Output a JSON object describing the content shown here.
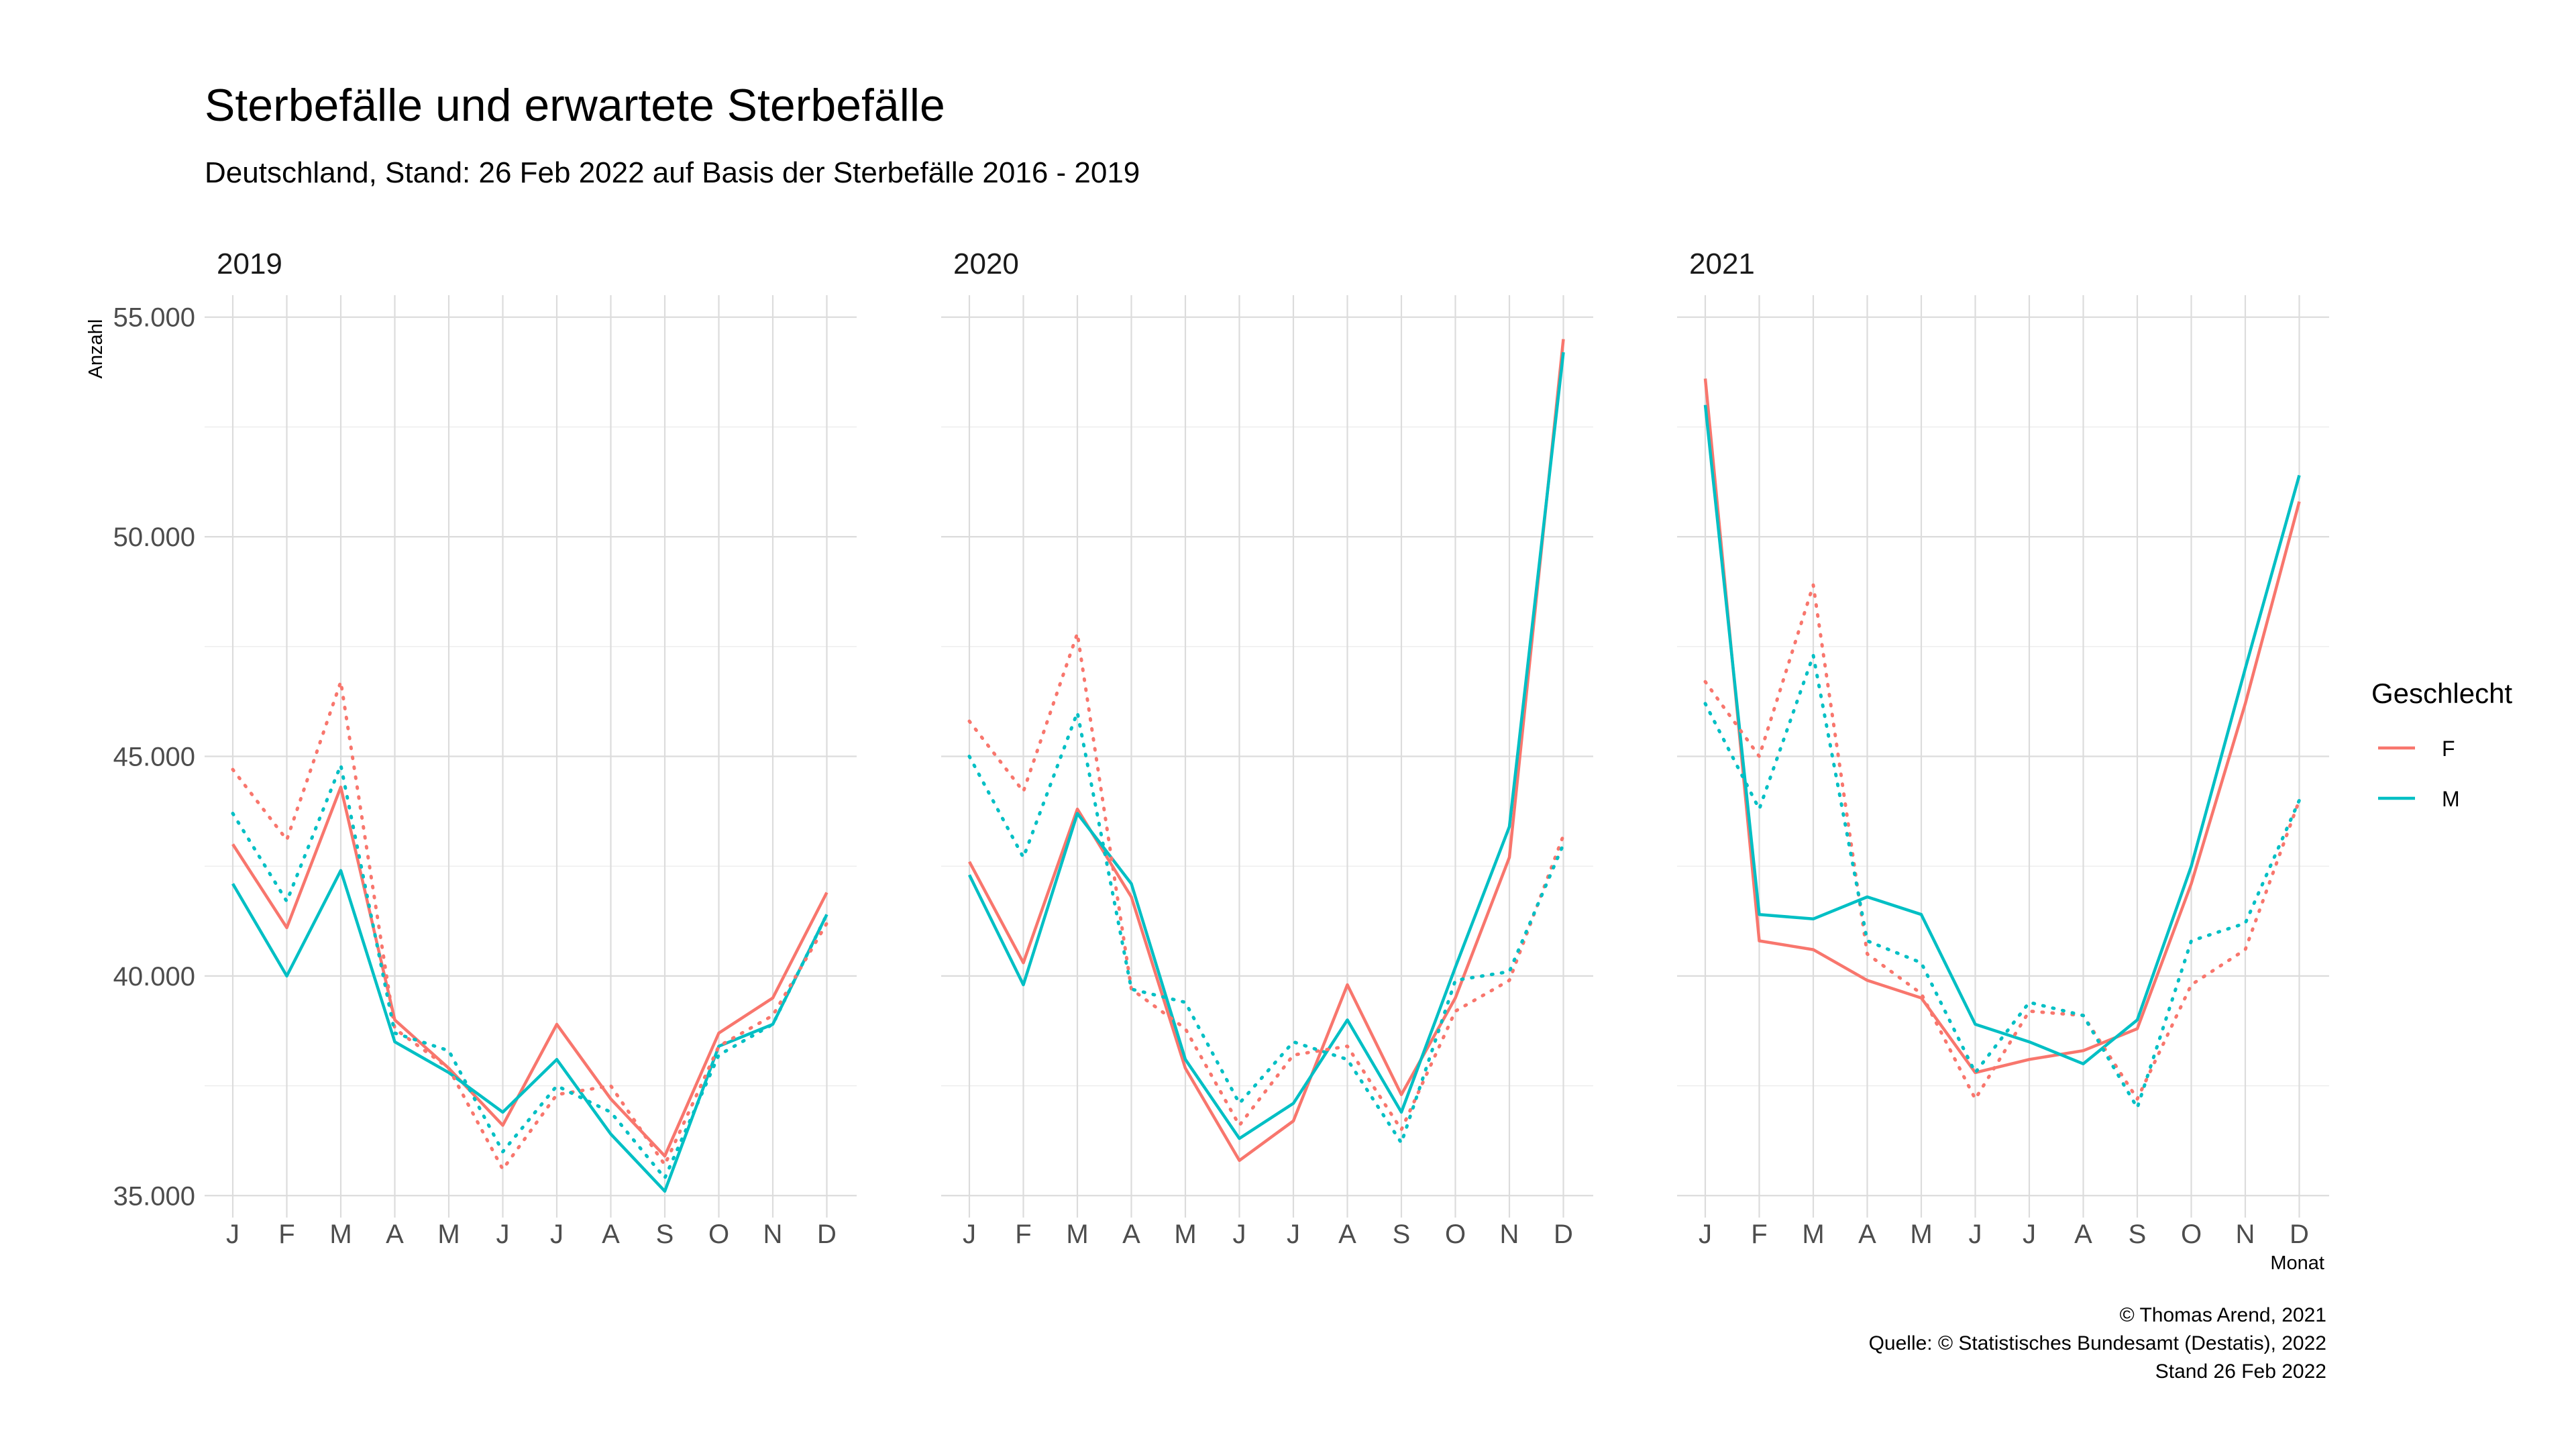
{
  "chart_data": {
    "type": "line",
    "title": "Sterbefälle und erwartete Sterbefälle",
    "subtitle": "Deutschland, Stand: 26 Feb 2022 auf Basis der Sterbefälle 2016 - 2019",
    "xlabel": "Monat",
    "ylabel": "Anzahl",
    "ylim": [
      34500,
      55500
    ],
    "yticks": [
      35000,
      40000,
      45000,
      50000,
      55000
    ],
    "ytick_labels": [
      "35.000",
      "40.000",
      "45.000",
      "50.000",
      "55.000"
    ],
    "categories": [
      "J",
      "F",
      "M",
      "A",
      "M",
      "J",
      "J",
      "A",
      "S",
      "O",
      "N",
      "D"
    ],
    "grid": true,
    "legend": {
      "title": "Geschlecht",
      "position": "right",
      "entries": [
        {
          "name": "F",
          "color": "#F8766D"
        },
        {
          "name": "M",
          "color": "#00BFC4"
        }
      ]
    },
    "line_styles": {
      "actual": "solid",
      "expected": "dotted"
    },
    "panels": [
      {
        "label": "2019",
        "series": [
          {
            "name": "F",
            "kind": "actual",
            "values": [
              43000,
              41100,
              44300,
              39000,
              37900,
              36600,
              38900,
              37200,
              35900,
              38700,
              39500,
              41900
            ]
          },
          {
            "name": "M",
            "kind": "actual",
            "values": [
              42100,
              40000,
              42400,
              38500,
              37800,
              36900,
              38100,
              36400,
              35100,
              38400,
              38900,
              41400
            ]
          },
          {
            "name": "F",
            "kind": "expected",
            "values": [
              44700,
              43100,
              46700,
              38800,
              37900,
              35600,
              37300,
              37500,
              35700,
              38400,
              39100,
              41200
            ]
          },
          {
            "name": "M",
            "kind": "expected",
            "values": [
              43700,
              41700,
              44800,
              38700,
              38300,
              36000,
              37500,
              36900,
              35400,
              38200,
              38900,
              41400
            ]
          }
        ]
      },
      {
        "label": "2020",
        "series": [
          {
            "name": "F",
            "kind": "actual",
            "values": [
              42600,
              40300,
              43800,
              41800,
              37900,
              35800,
              36700,
              39800,
              37300,
              39500,
              42700,
              54500
            ]
          },
          {
            "name": "M",
            "kind": "actual",
            "values": [
              42300,
              39800,
              43700,
              42100,
              38100,
              36300,
              37100,
              39000,
              36900,
              40200,
              43400,
              54200
            ]
          },
          {
            "name": "F",
            "kind": "expected",
            "values": [
              45800,
              44200,
              47800,
              39700,
              38800,
              36600,
              38200,
              38400,
              36500,
              39200,
              39900,
              43200
            ]
          },
          {
            "name": "M",
            "kind": "expected",
            "values": [
              45000,
              42700,
              46000,
              39700,
              39400,
              37100,
              38500,
              38100,
              36200,
              39900,
              40100,
              43000
            ]
          }
        ]
      },
      {
        "label": "2021",
        "series": [
          {
            "name": "F",
            "kind": "actual",
            "values": [
              53600,
              40800,
              40600,
              39900,
              39500,
              37800,
              38100,
              38300,
              38800,
              42100,
              46200,
              50800
            ]
          },
          {
            "name": "M",
            "kind": "actual",
            "values": [
              53000,
              41400,
              41300,
              41800,
              41400,
              38900,
              38500,
              38000,
              39000,
              42500,
              47000,
              51400
            ]
          },
          {
            "name": "F",
            "kind": "expected",
            "values": [
              46700,
              45000,
              48900,
              40500,
              39600,
              37200,
              39200,
              39100,
              37200,
              39800,
              40600,
              44000
            ]
          },
          {
            "name": "M",
            "kind": "expected",
            "values": [
              46200,
              43800,
              47300,
              40800,
              40300,
              37800,
              39400,
              39100,
              37000,
              40800,
              41200,
              44000
            ]
          }
        ]
      }
    ],
    "caption": [
      "© Thomas Arend, 2021",
      "Quelle: © Statistisches Bundesamt (Destatis), 2022",
      "Stand 26 Feb 2022"
    ]
  }
}
